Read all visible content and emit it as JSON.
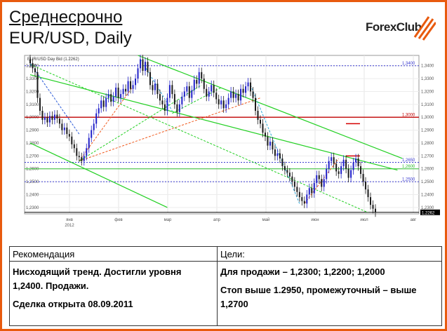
{
  "header": {
    "title_line1": "Среднесрочно",
    "title_line2": "EUR/USD, Daily"
  },
  "logo": {
    "text_forex": "Forex",
    "text_club": "Club",
    "accent_color": "#e85a0e"
  },
  "chart_data": {
    "type": "candlestick",
    "title": "EUR/USD Day Bid (1.2262)",
    "ylim": [
      1.225,
      1.348
    ],
    "yticks": [
      "1,3400",
      "1,3300",
      "1,3200",
      "1,3100",
      "1,3000",
      "1,2900",
      "1,2800",
      "1,2700",
      "1,2600",
      "1,2500",
      "1,2400",
      "1,2300"
    ],
    "ytick_values": [
      1.34,
      1.33,
      1.32,
      1.31,
      1.3,
      1.29,
      1.28,
      1.27,
      1.26,
      1.25,
      1.24,
      1.23
    ],
    "xticks": [
      "янв",
      "фев",
      "мар",
      "апр",
      "май",
      "июн",
      "июл",
      "авг"
    ],
    "xtick_sub": "2012",
    "level_lines": [
      {
        "label": "1,3400",
        "value": 1.34,
        "color": "#3a3ad0",
        "style": "dashed"
      },
      {
        "label": "1,3000",
        "value": 1.3,
        "color": "#c00000",
        "style": "solid"
      },
      {
        "label": "1,2650",
        "value": 1.265,
        "color": "#3a3ad0",
        "style": "dashed"
      },
      {
        "label": "1,2600",
        "value": 1.26,
        "color": "#2fbf2f",
        "style": "solid"
      },
      {
        "label": "1,2500",
        "value": 1.25,
        "color": "#3a3ad0",
        "style": "dashed"
      },
      {
        "label": "1,2262",
        "value": 1.2262,
        "color": "#000000",
        "style": "solid"
      }
    ],
    "red_marks": [
      1.295,
      1.27
    ],
    "closes": [
      1.342,
      1.338,
      1.335,
      1.315,
      1.305,
      1.298,
      1.3,
      1.296,
      1.301,
      1.298,
      1.302,
      1.299,
      1.295,
      1.29,
      1.292,
      1.287,
      1.285,
      1.279,
      1.276,
      1.27,
      1.269,
      1.266,
      1.27,
      1.276,
      1.284,
      1.29,
      1.295,
      1.303,
      1.307,
      1.313,
      1.308,
      1.315,
      1.318,
      1.312,
      1.316,
      1.323,
      1.315,
      1.318,
      1.322,
      1.32,
      1.328,
      1.322,
      1.325,
      1.33,
      1.338,
      1.345,
      1.336,
      1.343,
      1.335,
      1.325,
      1.321,
      1.326,
      1.318,
      1.313,
      1.31,
      1.305,
      1.315,
      1.325,
      1.318,
      1.31,
      1.304,
      1.31,
      1.316,
      1.32,
      1.324,
      1.315,
      1.321,
      1.329,
      1.326,
      1.335,
      1.33,
      1.322,
      1.316,
      1.32,
      1.325,
      1.319,
      1.314,
      1.31,
      1.313,
      1.307,
      1.31,
      1.315,
      1.32,
      1.315,
      1.318,
      1.313,
      1.322,
      1.319,
      1.324,
      1.327,
      1.32,
      1.315,
      1.305,
      1.298,
      1.295,
      1.288,
      1.285,
      1.278,
      1.281,
      1.275,
      1.27,
      1.272,
      1.268,
      1.262,
      1.259,
      1.257,
      1.254,
      1.25,
      1.246,
      1.242,
      1.238,
      1.235,
      1.233,
      1.24,
      1.245,
      1.241,
      1.249,
      1.255,
      1.252,
      1.246,
      1.252,
      1.26,
      1.266,
      1.269,
      1.264,
      1.258,
      1.256,
      1.262,
      1.267,
      1.26,
      1.253,
      1.259,
      1.265,
      1.268,
      1.262,
      1.256,
      1.25,
      1.244,
      1.238,
      1.232,
      1.229,
      1.2262
    ]
  },
  "table": {
    "header_left": "Рекомендация",
    "header_right": "Цели:",
    "left_line1": "Нисходящий тренд. Достигли уровня",
    "left_line2": "1,2400. Продажи.",
    "left_line3": "Сделка открыта 08.09.2011",
    "right_line1": "Для продажи – 1,2300; 1,2200; 1,2000",
    "right_line2": "Стоп выше 1.2950, промежуточный – выше",
    "right_line3": "1,2700"
  }
}
